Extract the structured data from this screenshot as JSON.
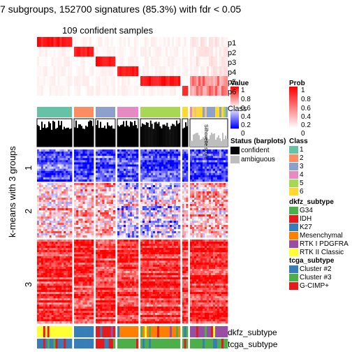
{
  "chart_data": {
    "type": "heatmap",
    "title": "7 subgroups, 152700 signatures (85.3%) with fdr < 0.05",
    "subtitle": "109 confident samples",
    "row_title": "k-means with 3 groups",
    "row_groups": [
      "1",
      "2",
      "3"
    ],
    "prob_tracks": [
      "p1",
      "p2",
      "p3",
      "p4",
      "p5",
      "p6"
    ],
    "silhouette_label": "Silhouette score",
    "class_track_label": "Class",
    "bottom_tracks": [
      "dkfz_subtype",
      "tcga_subtype"
    ],
    "column_groups": [
      {
        "class": "1",
        "width": 50
      },
      {
        "class": "2",
        "width": 28
      },
      {
        "class": "3",
        "width": 28
      },
      {
        "class": "4",
        "width": 30
      },
      {
        "class": "5",
        "width": 57
      },
      {
        "class": "6",
        "width": 8
      },
      {
        "class": "ambiguous",
        "width": 54
      }
    ],
    "legends": {
      "value": {
        "title": "Value",
        "ticks": [
          "1",
          "0.8",
          "0.6",
          "0.4",
          "0.2",
          "0"
        ]
      },
      "prob": {
        "title": "Prob",
        "ticks": [
          "1",
          "0.8",
          "0.6",
          "0.4",
          "0.2",
          "0"
        ]
      },
      "status": {
        "title": "Status (barplots)",
        "items": [
          {
            "label": "confident",
            "color": "#000000"
          },
          {
            "label": "ambiguous",
            "color": "#bebebe"
          }
        ]
      },
      "class": {
        "title": "Class",
        "items": [
          {
            "label": "1",
            "color": "#66C2A5"
          },
          {
            "label": "2",
            "color": "#FC8D62"
          },
          {
            "label": "3",
            "color": "#8DA0CB"
          },
          {
            "label": "4",
            "color": "#E78AC3"
          },
          {
            "label": "5",
            "color": "#A6D854"
          },
          {
            "label": "6",
            "color": "#FFD92F"
          }
        ]
      },
      "dkfz_subtype": {
        "title": "dkfz_subtype",
        "items": [
          {
            "label": "G34",
            "color": "#4DAF4A"
          },
          {
            "label": "IDH",
            "color": "#E41A1C"
          },
          {
            "label": "K27",
            "color": "#377EB8"
          },
          {
            "label": "Mesenchymal",
            "color": "#FF7F00"
          },
          {
            "label": "RTK I PDGFRA",
            "color": "#984EA3"
          },
          {
            "label": "RTK II Classic",
            "color": "#FFFF33"
          }
        ]
      },
      "tcga_subtype": {
        "title": "tcga_subtype",
        "items": [
          {
            "label": "Cluster #2",
            "color": "#377EB8"
          },
          {
            "label": "Cluster #3",
            "color": "#4DAF4A"
          },
          {
            "label": "G-CIMP+",
            "color": "#E41A1C"
          }
        ]
      }
    },
    "colors": {
      "high": "#FF0000",
      "mid": "#FFFFFF",
      "low": "#0000FF",
      "ambiguous": "#bebebe",
      "confident": "#000000"
    }
  }
}
